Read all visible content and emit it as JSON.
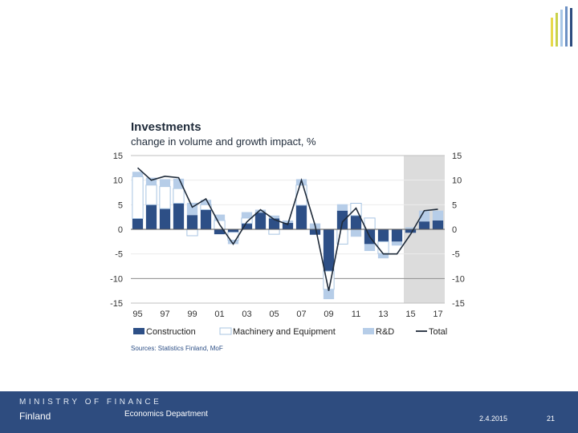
{
  "chart_data": {
    "type": "bar+line",
    "title": "Investments",
    "subtitle": "change in volume and growth impact, %",
    "source": "Sources: Statistics Finland, MoF",
    "years": [
      1995,
      1996,
      1997,
      1998,
      1999,
      2000,
      2001,
      2002,
      2003,
      2004,
      2005,
      2006,
      2007,
      2008,
      2009,
      2010,
      2011,
      2012,
      2013,
      2014,
      2015,
      2016,
      2017
    ],
    "x_tick_labels": [
      "95",
      "97",
      "99",
      "01",
      "03",
      "05",
      "07",
      "09",
      "11",
      "13",
      "15",
      "17"
    ],
    "ylim": [
      -15,
      15
    ],
    "y_ticks": [
      15,
      10,
      5,
      0,
      -5,
      -10,
      -15
    ],
    "y_tick_labels": [
      "15",
      "10",
      "5",
      "0",
      "-5",
      "-10",
      "-15"
    ],
    "forecast_years": [
      2015,
      2016,
      2017
    ],
    "series": [
      {
        "name": "Construction",
        "kind": "bar",
        "color": "#2d4f86",
        "values": [
          2.2,
          5.0,
          4.2,
          5.3,
          2.9,
          4.0,
          -1.0,
          -0.6,
          1.2,
          3.4,
          2.2,
          1.3,
          4.9,
          -1.1,
          -8.5,
          3.8,
          2.8,
          -3.0,
          -2.5,
          -2.5,
          -0.7,
          1.6,
          1.8
        ]
      },
      {
        "name": "Machinery and Equipment",
        "kind": "bar-outline",
        "color": "#a8c4e2",
        "values": [
          8.5,
          4.0,
          4.5,
          3.0,
          -1.3,
          1.0,
          1.8,
          -1.6,
          1.1,
          0,
          -1.0,
          0,
          4.1,
          0,
          -3.7,
          -3.0,
          2.5,
          2.3,
          -2.4,
          0,
          0,
          0,
          0
        ]
      },
      {
        "name": "R&D",
        "kind": "bar",
        "color": "#b6cde8",
        "values": [
          1.0,
          1.5,
          1.5,
          2.0,
          2.5,
          1.0,
          1.2,
          -0.8,
          1.2,
          0.6,
          0.6,
          0.5,
          1.2,
          1.2,
          -2.0,
          1.3,
          -1.5,
          -1.4,
          -1.0,
          -0.8,
          0.4,
          2.2,
          2.0
        ]
      },
      {
        "name": "Total",
        "kind": "line",
        "color": "#1f2b3a",
        "values": [
          12.5,
          10.0,
          10.8,
          10.5,
          4.5,
          6.2,
          1.0,
          -3.0,
          1.5,
          4.0,
          2.0,
          1.0,
          10.0,
          0.8,
          -12.5,
          1.5,
          4.3,
          -1.5,
          -5.0,
          -5.0,
          -1.0,
          3.8,
          4.1
        ]
      }
    ]
  },
  "legend": {
    "construction": "Construction",
    "machinery": "Machinery and Equipment",
    "rd": "R&D",
    "total": "Total"
  },
  "footer": {
    "ministry_line1": "MINISTRY OF FINANCE",
    "ministry_line2": "Finland",
    "department": "Economics Department",
    "date": "2.4.2015",
    "page_number": "21"
  },
  "colors": {
    "construction": "#2d4f86",
    "machinery_outline": "#a8c4e2",
    "rd": "#b6cde8",
    "total_line": "#1f2b3a",
    "forecast_shade": "#dcdcdc",
    "footer_bg": "#2e4c7f"
  }
}
